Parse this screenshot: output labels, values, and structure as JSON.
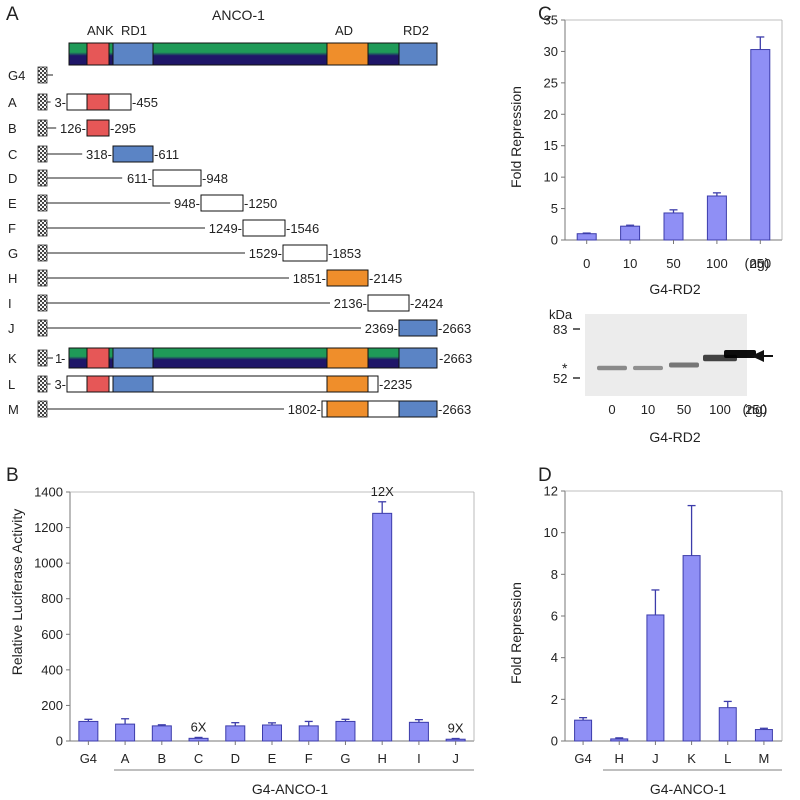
{
  "panel_labels": {
    "a": "A",
    "b": "B",
    "c": "C",
    "d": "D"
  },
  "colors": {
    "bar_fill": "#8f8ff5",
    "bar_stroke": "#3c3caa",
    "ank": "#e65757",
    "rd": "#5b84c5",
    "ad": "#ef8e2b",
    "green": "#1f9a58",
    "navy": "#1f1668",
    "blot_bg": "#ececec"
  },
  "panelA": {
    "title": "ANCO-1",
    "domains": [
      "ANK",
      "RD1",
      "AD",
      "RD2"
    ],
    "rows": [
      {
        "id": "G4",
        "label": "G4",
        "left": "",
        "right": ""
      },
      {
        "id": "A",
        "label": "A",
        "left": "3",
        "right": "455"
      },
      {
        "id": "B",
        "label": "B",
        "left": "126",
        "right": "295"
      },
      {
        "id": "C",
        "label": "C",
        "left": "318",
        "right": "611"
      },
      {
        "id": "D",
        "label": "D",
        "left": "611",
        "right": "948"
      },
      {
        "id": "E",
        "label": "E",
        "left": "948",
        "right": "1250"
      },
      {
        "id": "F",
        "label": "F",
        "left": "1249",
        "right": "1546"
      },
      {
        "id": "G",
        "label": "G",
        "left": "1529",
        "right": "1853"
      },
      {
        "id": "H",
        "label": "H",
        "left": "1851",
        "right": "2145"
      },
      {
        "id": "I",
        "label": "I",
        "left": "2136",
        "right": "2424"
      },
      {
        "id": "J",
        "label": "J",
        "left": "2369",
        "right": "2663"
      },
      {
        "id": "K",
        "label": "K",
        "left": "1",
        "right": "2663"
      },
      {
        "id": "L",
        "label": "L",
        "left": "3",
        "right": "2235"
      },
      {
        "id": "M",
        "label": "M",
        "left": "1802",
        "right": "2663"
      }
    ]
  },
  "chart_data": [
    {
      "panel": "B",
      "type": "bar",
      "categories": [
        "G4",
        "A",
        "B",
        "C",
        "D",
        "E",
        "F",
        "G",
        "H",
        "I",
        "J"
      ],
      "values": [
        110,
        95,
        85,
        15,
        85,
        90,
        85,
        110,
        1280,
        105,
        10
      ],
      "errors": [
        12,
        30,
        6,
        5,
        18,
        12,
        25,
        12,
        65,
        15,
        4
      ],
      "annotations": {
        "C": "6X",
        "H": "12X",
        "J": "9X"
      },
      "ylabel": "Relative Luciferase Activity",
      "xgroup_label": "G4-ANCO-1",
      "ylim": [
        0,
        1400
      ],
      "yticks": [
        0,
        200,
        400,
        600,
        800,
        1000,
        1200,
        1400
      ]
    },
    {
      "panel": "C",
      "type": "bar",
      "categories": [
        "0",
        "10",
        "50",
        "100",
        "250"
      ],
      "unit_label": "(ng)",
      "values": [
        1,
        2.2,
        4.3,
        7,
        30.3
      ],
      "errors": [
        0.1,
        0.15,
        0.5,
        0.5,
        2
      ],
      "ylabel": "Fold Repression",
      "xlabel": "G4-RD2",
      "ylim": [
        0,
        35
      ],
      "yticks": [
        0,
        5,
        10,
        15,
        20,
        25,
        30,
        35
      ]
    },
    {
      "panel": "D",
      "type": "bar",
      "categories": [
        "G4",
        "H",
        "J",
        "K",
        "L",
        "M"
      ],
      "values": [
        1,
        0.1,
        6.05,
        8.9,
        1.6,
        0.55
      ],
      "errors": [
        0.12,
        0.05,
        1.2,
        2.4,
        0.3,
        0.06
      ],
      "ylabel": "Fold Repression",
      "xgroup_label": "G4-ANCO-1",
      "ylim": [
        0,
        12
      ],
      "yticks": [
        0,
        2,
        4,
        6,
        8,
        10,
        12
      ]
    }
  ],
  "blot": {
    "kda_label": "kDa",
    "markers": [
      "83",
      "52"
    ],
    "star": "*",
    "lanes": [
      "0",
      "10",
      "50",
      "100",
      "250"
    ],
    "lane_intensity": [
      0.3,
      0.25,
      0.4,
      0.7,
      1.0
    ],
    "unit_label": "(ng)",
    "xlabel": "G4-RD2"
  }
}
